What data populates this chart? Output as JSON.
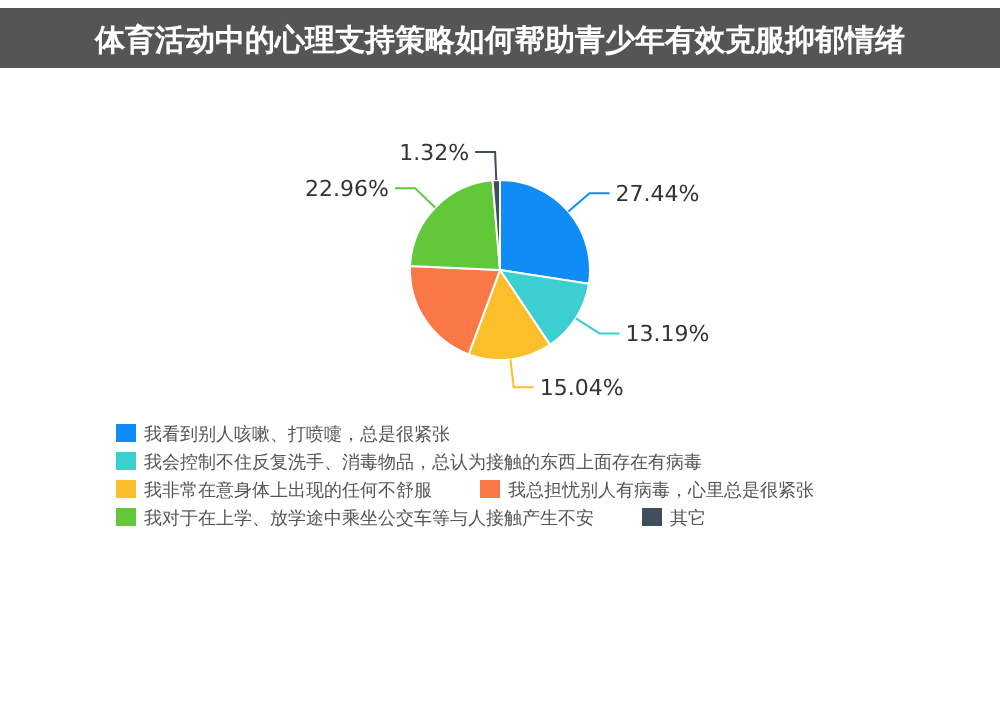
{
  "chart_data": {
    "type": "pie",
    "title": "体育活动中的心理支持策略如何帮助青少年有效克服抑郁情绪",
    "categories": [
      "我看到别人咳嗽、打喷嚏，总是很紧张",
      "我会控制不住反复洗手、消毒物品，总认为接触的东西上面存在有病毒",
      "我非常在意身体上出现的任何不舒服",
      "我总担忧别人有病毒，心里总是很紧张",
      "我对于在上学、放学途中乘坐公交车等与人接触产生不安",
      "其它"
    ],
    "values": [
      27.44,
      13.19,
      15.04,
      20.05,
      22.96,
      1.32
    ],
    "value_labels": [
      "27.44%",
      "13.19%",
      "15.04%",
      null,
      "22.96%",
      "1.32%"
    ],
    "colors": [
      "#0f8cf5",
      "#3ccfcf",
      "#fbbf2c",
      "#fa7845",
      "#62c839",
      "#3e4e5c"
    ],
    "legend": "bottom"
  }
}
